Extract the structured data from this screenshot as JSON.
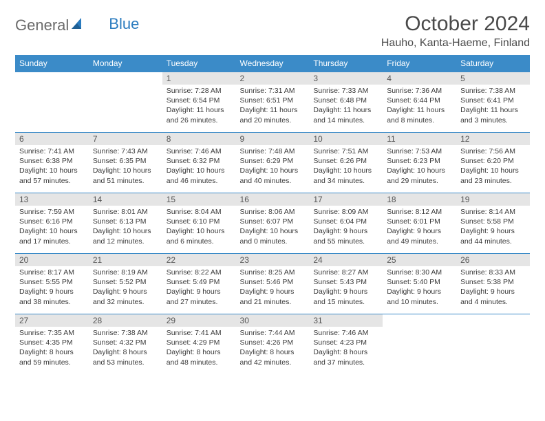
{
  "logo": {
    "text1": "General",
    "text2": "Blue"
  },
  "title": "October 2024",
  "location": "Hauho, Kanta-Haeme, Finland",
  "colors": {
    "header_bg": "#3b8bc8",
    "daynum_bg": "#e5e5e5",
    "text": "#3a3a3a",
    "rule": "#3b8bc8"
  },
  "weekdays": [
    "Sunday",
    "Monday",
    "Tuesday",
    "Wednesday",
    "Thursday",
    "Friday",
    "Saturday"
  ],
  "weeks": [
    [
      {
        "n": "",
        "sr": "",
        "ss": "",
        "d1": "",
        "d2": ""
      },
      {
        "n": "",
        "sr": "",
        "ss": "",
        "d1": "",
        "d2": ""
      },
      {
        "n": "1",
        "sr": "Sunrise: 7:28 AM",
        "ss": "Sunset: 6:54 PM",
        "d1": "Daylight: 11 hours",
        "d2": "and 26 minutes."
      },
      {
        "n": "2",
        "sr": "Sunrise: 7:31 AM",
        "ss": "Sunset: 6:51 PM",
        "d1": "Daylight: 11 hours",
        "d2": "and 20 minutes."
      },
      {
        "n": "3",
        "sr": "Sunrise: 7:33 AM",
        "ss": "Sunset: 6:48 PM",
        "d1": "Daylight: 11 hours",
        "d2": "and 14 minutes."
      },
      {
        "n": "4",
        "sr": "Sunrise: 7:36 AM",
        "ss": "Sunset: 6:44 PM",
        "d1": "Daylight: 11 hours",
        "d2": "and 8 minutes."
      },
      {
        "n": "5",
        "sr": "Sunrise: 7:38 AM",
        "ss": "Sunset: 6:41 PM",
        "d1": "Daylight: 11 hours",
        "d2": "and 3 minutes."
      }
    ],
    [
      {
        "n": "6",
        "sr": "Sunrise: 7:41 AM",
        "ss": "Sunset: 6:38 PM",
        "d1": "Daylight: 10 hours",
        "d2": "and 57 minutes."
      },
      {
        "n": "7",
        "sr": "Sunrise: 7:43 AM",
        "ss": "Sunset: 6:35 PM",
        "d1": "Daylight: 10 hours",
        "d2": "and 51 minutes."
      },
      {
        "n": "8",
        "sr": "Sunrise: 7:46 AM",
        "ss": "Sunset: 6:32 PM",
        "d1": "Daylight: 10 hours",
        "d2": "and 46 minutes."
      },
      {
        "n": "9",
        "sr": "Sunrise: 7:48 AM",
        "ss": "Sunset: 6:29 PM",
        "d1": "Daylight: 10 hours",
        "d2": "and 40 minutes."
      },
      {
        "n": "10",
        "sr": "Sunrise: 7:51 AM",
        "ss": "Sunset: 6:26 PM",
        "d1": "Daylight: 10 hours",
        "d2": "and 34 minutes."
      },
      {
        "n": "11",
        "sr": "Sunrise: 7:53 AM",
        "ss": "Sunset: 6:23 PM",
        "d1": "Daylight: 10 hours",
        "d2": "and 29 minutes."
      },
      {
        "n": "12",
        "sr": "Sunrise: 7:56 AM",
        "ss": "Sunset: 6:20 PM",
        "d1": "Daylight: 10 hours",
        "d2": "and 23 minutes."
      }
    ],
    [
      {
        "n": "13",
        "sr": "Sunrise: 7:59 AM",
        "ss": "Sunset: 6:16 PM",
        "d1": "Daylight: 10 hours",
        "d2": "and 17 minutes."
      },
      {
        "n": "14",
        "sr": "Sunrise: 8:01 AM",
        "ss": "Sunset: 6:13 PM",
        "d1": "Daylight: 10 hours",
        "d2": "and 12 minutes."
      },
      {
        "n": "15",
        "sr": "Sunrise: 8:04 AM",
        "ss": "Sunset: 6:10 PM",
        "d1": "Daylight: 10 hours",
        "d2": "and 6 minutes."
      },
      {
        "n": "16",
        "sr": "Sunrise: 8:06 AM",
        "ss": "Sunset: 6:07 PM",
        "d1": "Daylight: 10 hours",
        "d2": "and 0 minutes."
      },
      {
        "n": "17",
        "sr": "Sunrise: 8:09 AM",
        "ss": "Sunset: 6:04 PM",
        "d1": "Daylight: 9 hours",
        "d2": "and 55 minutes."
      },
      {
        "n": "18",
        "sr": "Sunrise: 8:12 AM",
        "ss": "Sunset: 6:01 PM",
        "d1": "Daylight: 9 hours",
        "d2": "and 49 minutes."
      },
      {
        "n": "19",
        "sr": "Sunrise: 8:14 AM",
        "ss": "Sunset: 5:58 PM",
        "d1": "Daylight: 9 hours",
        "d2": "and 44 minutes."
      }
    ],
    [
      {
        "n": "20",
        "sr": "Sunrise: 8:17 AM",
        "ss": "Sunset: 5:55 PM",
        "d1": "Daylight: 9 hours",
        "d2": "and 38 minutes."
      },
      {
        "n": "21",
        "sr": "Sunrise: 8:19 AM",
        "ss": "Sunset: 5:52 PM",
        "d1": "Daylight: 9 hours",
        "d2": "and 32 minutes."
      },
      {
        "n": "22",
        "sr": "Sunrise: 8:22 AM",
        "ss": "Sunset: 5:49 PM",
        "d1": "Daylight: 9 hours",
        "d2": "and 27 minutes."
      },
      {
        "n": "23",
        "sr": "Sunrise: 8:25 AM",
        "ss": "Sunset: 5:46 PM",
        "d1": "Daylight: 9 hours",
        "d2": "and 21 minutes."
      },
      {
        "n": "24",
        "sr": "Sunrise: 8:27 AM",
        "ss": "Sunset: 5:43 PM",
        "d1": "Daylight: 9 hours",
        "d2": "and 15 minutes."
      },
      {
        "n": "25",
        "sr": "Sunrise: 8:30 AM",
        "ss": "Sunset: 5:40 PM",
        "d1": "Daylight: 9 hours",
        "d2": "and 10 minutes."
      },
      {
        "n": "26",
        "sr": "Sunrise: 8:33 AM",
        "ss": "Sunset: 5:38 PM",
        "d1": "Daylight: 9 hours",
        "d2": "and 4 minutes."
      }
    ],
    [
      {
        "n": "27",
        "sr": "Sunrise: 7:35 AM",
        "ss": "Sunset: 4:35 PM",
        "d1": "Daylight: 8 hours",
        "d2": "and 59 minutes."
      },
      {
        "n": "28",
        "sr": "Sunrise: 7:38 AM",
        "ss": "Sunset: 4:32 PM",
        "d1": "Daylight: 8 hours",
        "d2": "and 53 minutes."
      },
      {
        "n": "29",
        "sr": "Sunrise: 7:41 AM",
        "ss": "Sunset: 4:29 PM",
        "d1": "Daylight: 8 hours",
        "d2": "and 48 minutes."
      },
      {
        "n": "30",
        "sr": "Sunrise: 7:44 AM",
        "ss": "Sunset: 4:26 PM",
        "d1": "Daylight: 8 hours",
        "d2": "and 42 minutes."
      },
      {
        "n": "31",
        "sr": "Sunrise: 7:46 AM",
        "ss": "Sunset: 4:23 PM",
        "d1": "Daylight: 8 hours",
        "d2": "and 37 minutes."
      },
      {
        "n": "",
        "sr": "",
        "ss": "",
        "d1": "",
        "d2": ""
      },
      {
        "n": "",
        "sr": "",
        "ss": "",
        "d1": "",
        "d2": ""
      }
    ]
  ]
}
